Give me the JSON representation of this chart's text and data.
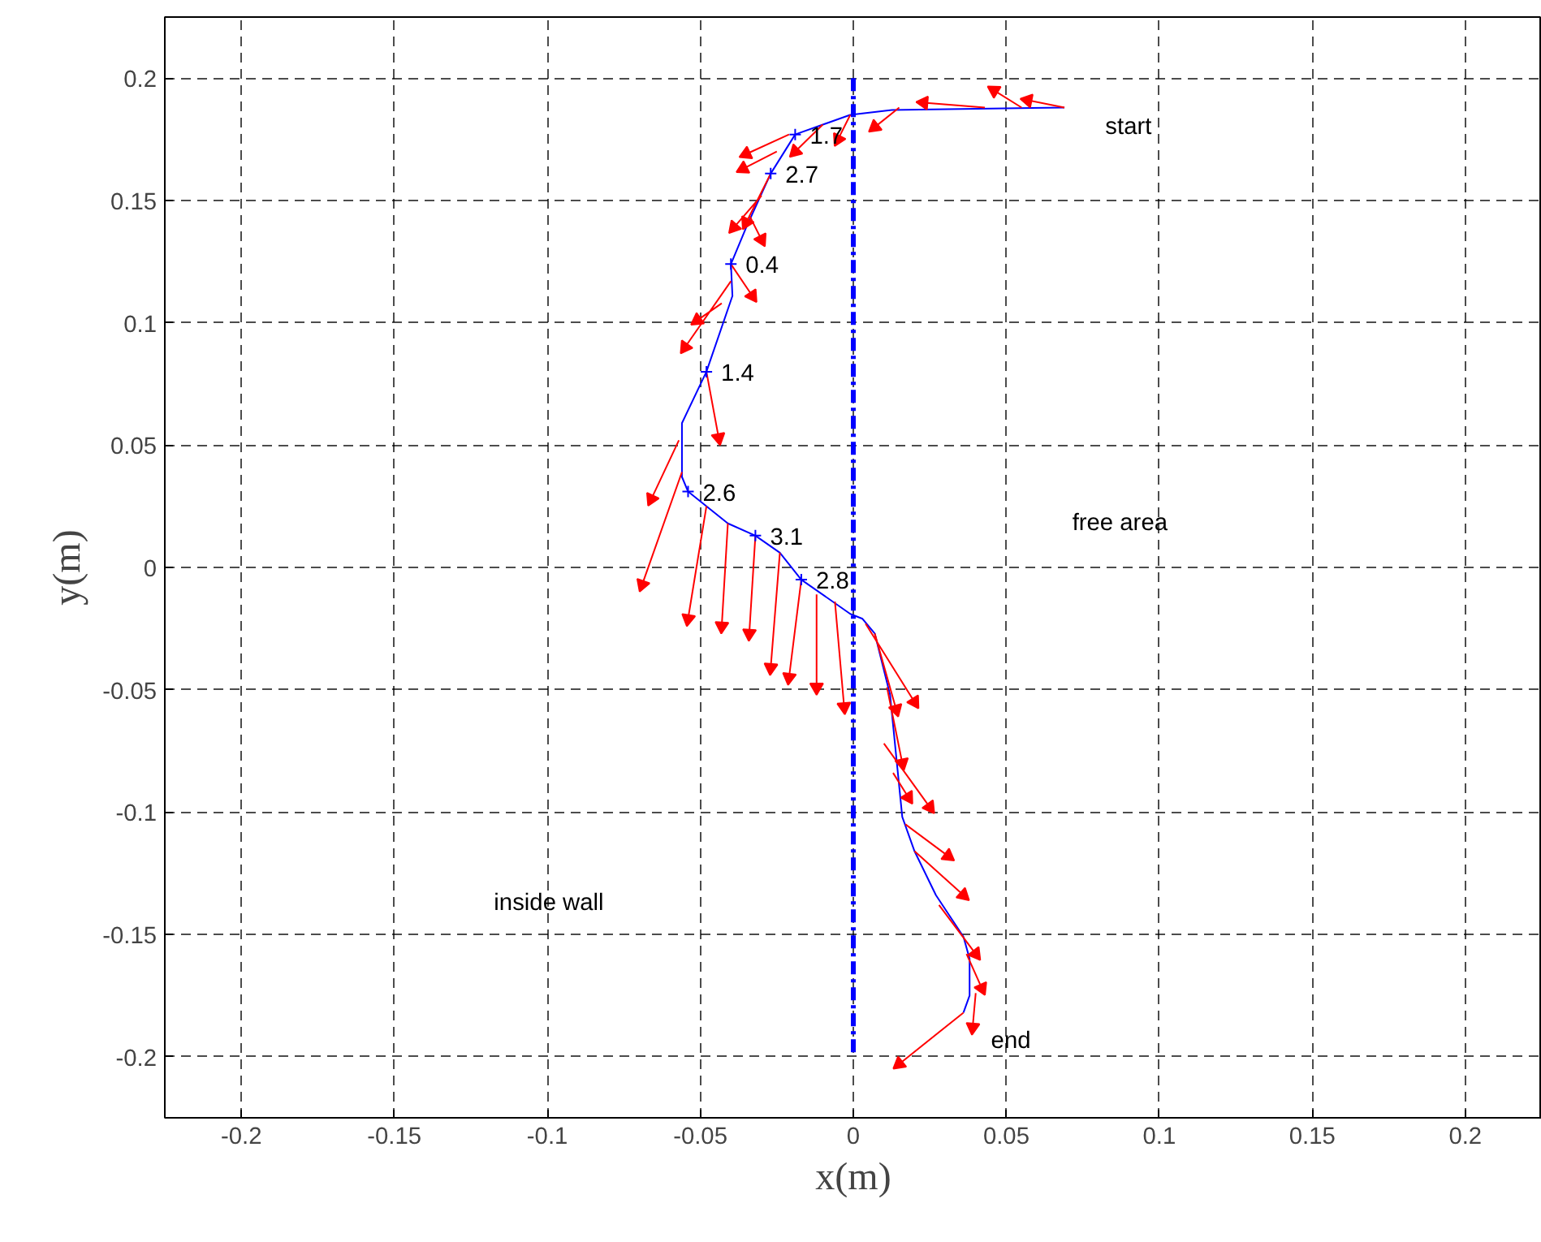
{
  "chart_data": {
    "type": "line",
    "xlabel": "x(m)",
    "ylabel": "y(m)",
    "xlim": [
      -0.225,
      0.225
    ],
    "ylim": [
      -0.225,
      0.225
    ],
    "xticks": [
      -0.2,
      -0.15,
      -0.1,
      -0.05,
      0,
      0.05,
      0.1,
      0.15,
      0.2
    ],
    "yticks": [
      -0.2,
      -0.15,
      -0.1,
      -0.05,
      0,
      0.05,
      0.1,
      0.15,
      0.2
    ],
    "grid": true,
    "series": [
      {
        "color": "#0000ff",
        "line_style": "solid",
        "x": [
          0.069,
          0.0126,
          -0.001,
          -0.019,
          -0.027,
          -0.035,
          -0.04,
          -0.0395,
          -0.048,
          -0.056,
          -0.056,
          -0.054,
          -0.041,
          -0.032,
          -0.024,
          -0.017,
          -0.001,
          0.003,
          0.007,
          0.012,
          0.016,
          0.02,
          0.027,
          0.036,
          0.038,
          0.038,
          0.036
        ],
        "values": [
          0.188,
          0.187,
          0.185,
          0.177,
          0.161,
          0.139,
          0.124,
          0.111,
          0.08,
          0.059,
          0.037,
          0.031,
          0.018,
          0.013,
          0.006,
          -0.005,
          -0.019,
          -0.021,
          -0.027,
          -0.052,
          -0.102,
          -0.116,
          -0.134,
          -0.151,
          -0.16,
          -0.175,
          -0.182
        ]
      },
      {
        "type": "line",
        "color": "#0000ff",
        "line_style": "dashed",
        "x": [
          0,
          0
        ],
        "values": [
          0.2,
          -0.2
        ]
      },
      {
        "color": "#ff0000",
        "line_style": "solid",
        "x": [
          0.069,
          0.057,
          null,
          0.055,
          0.046,
          null,
          0.043,
          0.023,
          null,
          0.015,
          0.007,
          null,
          -0.001,
          -0.005,
          null,
          -0.01,
          -0.019,
          null,
          -0.021,
          -0.035,
          null,
          -0.025,
          -0.036,
          null,
          -0.027,
          -0.035,
          null,
          -0.03,
          -0.039,
          null,
          -0.034,
          -0.03,
          null,
          -0.04,
          -0.033,
          null,
          -0.04,
          -0.055,
          null,
          -0.043,
          -0.051,
          null,
          -0.048,
          -0.044,
          null,
          -0.057,
          -0.066,
          null,
          -0.056,
          -0.069,
          null,
          -0.048,
          -0.054,
          null,
          -0.041,
          -0.043,
          null,
          -0.032,
          -0.034,
          null,
          -0.024,
          -0.027,
          null,
          -0.017,
          -0.021,
          null,
          -0.012,
          -0.012,
          null,
          -0.006,
          -0.003,
          null,
          0.004,
          0.02,
          null,
          0.007,
          0.014,
          null,
          0.011,
          0.016,
          null,
          0.01,
          0.025,
          null,
          0.013,
          0.018,
          null,
          0.017,
          0.031,
          null,
          0.02,
          0.036,
          null,
          0.028,
          0.04,
          null,
          0.037,
          0.042,
          null,
          0.04,
          0.039,
          null,
          0.036,
          0.015
        ],
        "values": [
          0.188,
          0.191,
          null,
          0.188,
          0.195,
          null,
          0.188,
          0.19,
          null,
          0.188,
          0.18,
          null,
          0.185,
          0.175,
          null,
          0.181,
          0.17,
          null,
          0.177,
          0.169,
          null,
          0.17,
          0.163,
          null,
          0.161,
          0.141,
          null,
          0.152,
          0.139,
          null,
          0.144,
          0.134,
          null,
          0.124,
          0.111,
          null,
          0.117,
          0.09,
          null,
          0.108,
          0.101,
          null,
          0.08,
          0.053,
          null,
          0.052,
          0.028,
          null,
          0.039,
          -0.007,
          null,
          0.025,
          -0.021,
          null,
          0.018,
          -0.024,
          null,
          0.013,
          -0.027,
          null,
          0.006,
          -0.041,
          null,
          -0.005,
          -0.045,
          null,
          -0.011,
          -0.049,
          null,
          -0.014,
          -0.057,
          null,
          -0.023,
          -0.055,
          null,
          -0.027,
          -0.058,
          null,
          -0.049,
          -0.08,
          null,
          -0.072,
          -0.098,
          null,
          -0.084,
          -0.094,
          null,
          -0.105,
          -0.118,
          null,
          -0.116,
          -0.134,
          null,
          -0.138,
          -0.158,
          null,
          -0.158,
          -0.172,
          null,
          -0.174,
          -0.188,
          null,
          -0.182,
          -0.203
        ]
      },
      {
        "type": "scatter",
        "color": "#0000ff",
        "marker": "cross",
        "x": [
          -0.019,
          -0.027,
          -0.04,
          -0.048,
          -0.054,
          -0.032,
          -0.017
        ],
        "values": [
          0.177,
          0.161,
          0.124,
          0.08,
          0.031,
          0.013,
          -0.005
        ]
      }
    ],
    "annotations": [
      {
        "text": "1.7",
        "x": -0.019,
        "y": 0.177
      },
      {
        "text": "2.7",
        "x": -0.027,
        "y": 0.161
      },
      {
        "text": "0.4",
        "x": -0.04,
        "y": 0.124
      },
      {
        "text": "1.4",
        "x": -0.048,
        "y": 0.08
      },
      {
        "text": "2.6",
        "x": -0.054,
        "y": 0.031
      },
      {
        "text": "3.1",
        "x": -0.032,
        "y": 0.013
      },
      {
        "text": "2.8",
        "x": -0.017,
        "y": -0.005
      },
      "start",
      "free area",
      "inside wall",
      "end"
    ]
  }
}
